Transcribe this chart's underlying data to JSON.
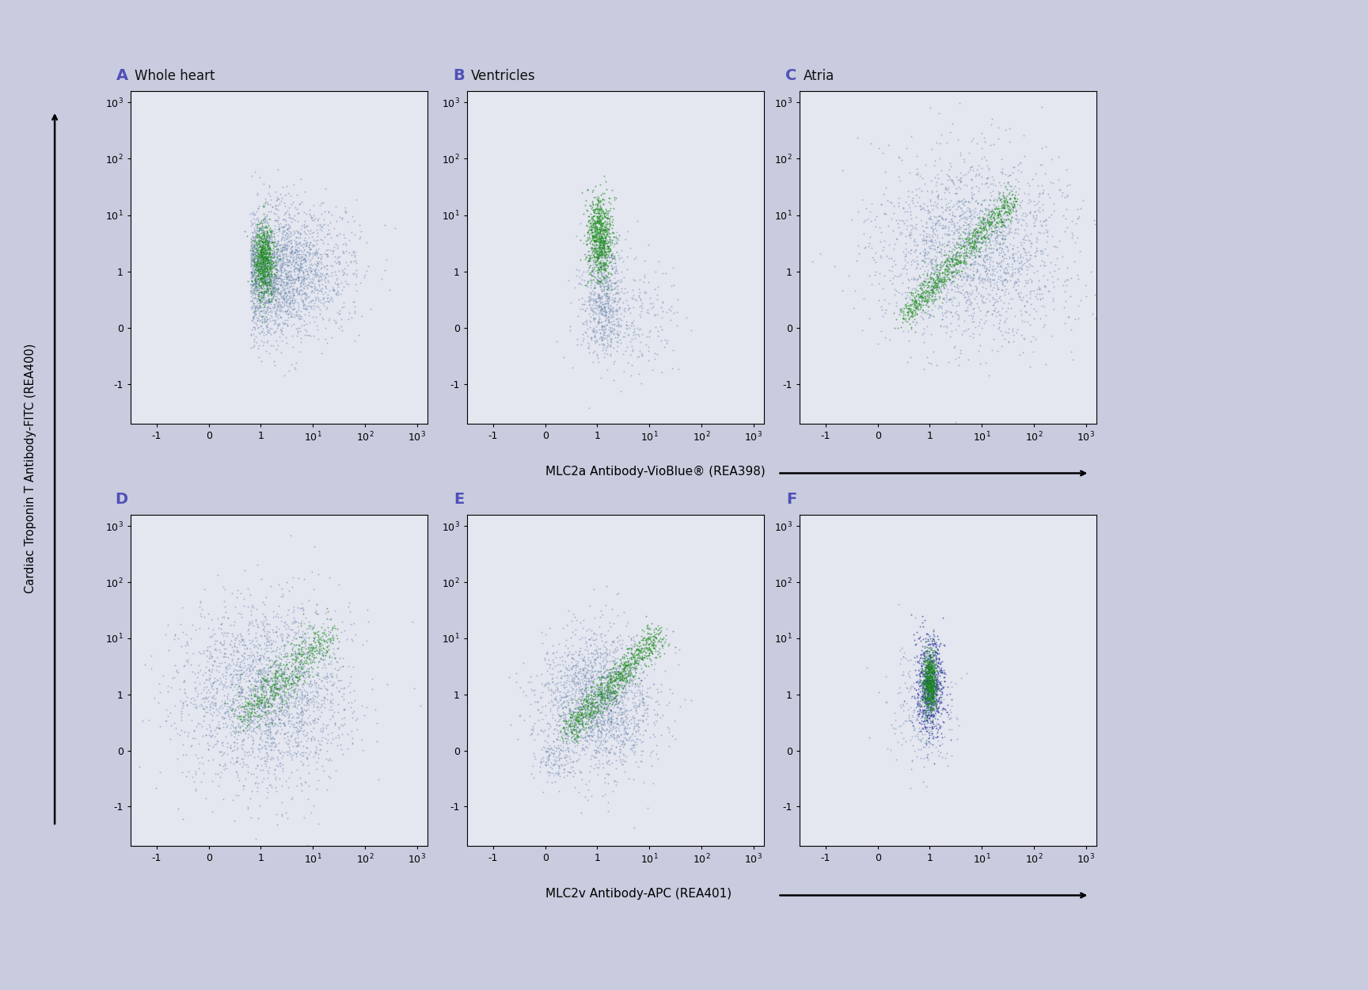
{
  "background_color": "#c8ccde",
  "plot_bg_color": "#e4e6f0",
  "border_color": "#9090b8",
  "panel_labels": [
    "A",
    "B",
    "C",
    "D",
    "E",
    "F"
  ],
  "panel_titles": [
    "Whole heart",
    "Ventricles",
    "Atria",
    "",
    "",
    ""
  ],
  "xlabel_top": "MLC2a Antibody-VioBlue® (REA398)",
  "xlabel_bottom": "MLC2v Antibody-APC (REA401)",
  "ylabel": "Cardiac Troponin T Antibody-FITC (REA400)",
  "label_color": "#5050b8",
  "title_color": "#111111",
  "dot_green": "#1a8c1a",
  "dot_teal": "#2a7a6a",
  "dot_blue_gray": "#5878a0",
  "dot_dark_blue": "#202898",
  "tick_positions": [
    -1,
    0,
    1,
    2,
    3,
    4
  ],
  "tick_labels": [
    "-1",
    "0",
    "1",
    "10$^1$",
    "10$^2$",
    "10$^3$"
  ],
  "xlim": [
    -1.5,
    4.2
  ],
  "ylim": [
    -1.7,
    4.2
  ]
}
